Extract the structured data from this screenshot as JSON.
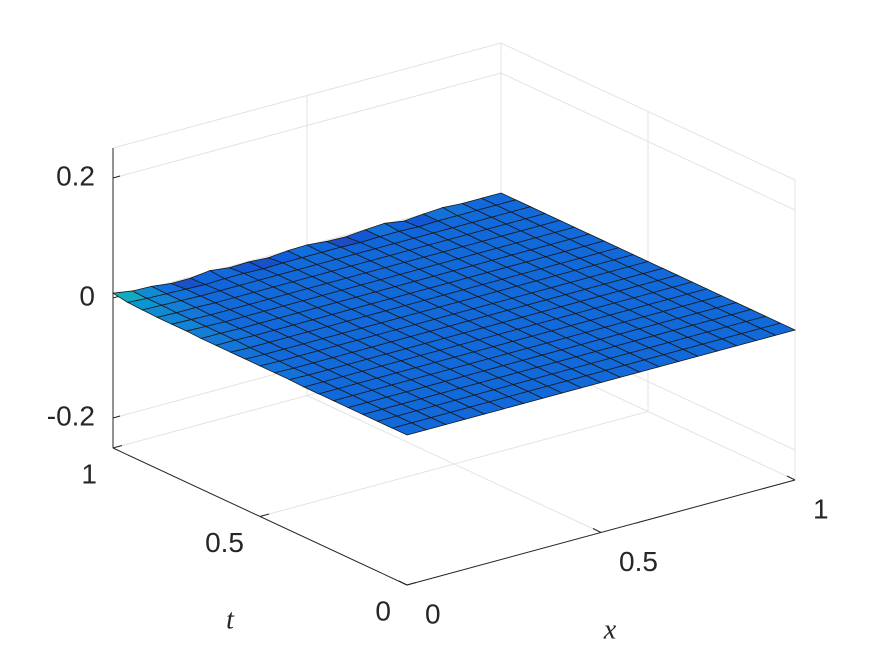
{
  "chart_data": {
    "type": "surface",
    "xlabel": "x",
    "ylabel": "t",
    "x": [
      0,
      0.05,
      0.1,
      0.15,
      0.2,
      0.25,
      0.3,
      0.35,
      0.4,
      0.45,
      0.5,
      0.55,
      0.6,
      0.65,
      0.7,
      0.75,
      0.8,
      0.85,
      0.9,
      0.95,
      1
    ],
    "y": [
      0,
      0.05,
      0.1,
      0.15,
      0.2,
      0.25,
      0.3,
      0.35,
      0.4,
      0.45,
      0.5,
      0.55,
      0.6,
      0.65,
      0.7,
      0.75,
      0.8,
      0.85,
      0.9,
      0.95,
      1
    ],
    "z": [
      [
        0,
        0,
        0,
        0,
        0,
        0,
        0,
        0,
        0,
        0,
        0,
        0,
        0,
        0,
        0,
        0,
        0,
        0,
        0,
        0,
        0
      ],
      [
        0,
        0,
        0,
        0,
        0,
        0,
        0,
        0,
        0,
        0,
        0,
        0,
        0,
        0,
        0,
        0,
        0,
        0,
        0,
        0,
        0
      ],
      [
        0,
        0,
        0,
        0,
        0,
        0,
        0,
        0,
        0,
        0,
        0,
        0,
        0,
        0,
        0,
        0,
        0,
        0,
        0,
        0,
        0
      ],
      [
        0,
        0,
        0,
        0,
        0,
        0,
        0,
        0,
        0,
        0,
        0,
        0,
        0,
        0,
        0,
        0,
        0,
        0,
        0,
        0,
        0
      ],
      [
        0,
        0,
        0,
        0,
        0,
        0,
        0,
        0,
        0,
        0,
        0,
        0,
        0,
        0,
        0,
        0,
        0,
        0,
        0,
        0,
        0
      ],
      [
        0,
        0,
        0,
        0,
        0,
        0,
        0,
        0,
        0,
        0,
        0,
        0,
        0,
        0,
        0,
        0,
        0,
        0,
        0,
        0,
        0
      ],
      [
        0,
        0,
        0,
        0,
        0,
        0,
        0,
        0,
        0,
        0,
        0,
        0,
        0,
        0,
        0,
        0,
        0,
        0,
        0,
        0,
        0
      ],
      [
        0,
        0,
        0,
        0,
        0,
        0,
        0,
        0,
        0,
        0,
        0,
        0,
        0,
        0,
        0,
        0,
        0,
        0,
        0,
        0,
        0
      ],
      [
        0.001,
        0,
        0,
        0,
        0,
        0,
        0,
        0,
        0,
        0,
        0,
        0,
        0,
        0,
        0,
        0,
        0,
        0,
        0,
        0,
        0
      ],
      [
        0.001,
        0,
        0,
        0,
        0,
        0,
        0,
        0,
        0,
        0,
        0,
        0,
        0,
        0,
        0,
        0,
        0,
        0,
        0,
        0,
        0
      ],
      [
        0.001,
        0,
        0,
        0,
        0,
        0,
        0,
        0,
        0,
        0,
        0,
        0,
        0,
        0,
        0,
        0,
        0,
        0,
        0,
        0,
        0
      ],
      [
        0.001,
        0,
        0,
        0,
        0,
        0,
        0,
        0,
        0,
        0,
        0,
        0,
        0,
        0,
        0,
        0,
        0,
        0,
        0,
        0,
        0
      ],
      [
        0.001,
        0,
        0,
        0,
        0,
        0,
        0,
        0,
        0,
        0,
        0,
        0,
        0,
        0,
        0,
        0,
        0,
        0,
        0,
        0,
        0
      ],
      [
        0.001,
        0.001,
        0,
        0,
        0,
        0,
        0,
        0,
        0,
        0,
        0,
        0,
        0,
        0,
        0,
        0,
        0,
        0,
        0,
        0,
        0
      ],
      [
        0.001,
        0.001,
        0,
        0,
        0,
        0,
        0,
        0,
        0,
        0,
        0,
        0,
        0,
        0,
        0,
        0,
        0,
        0,
        0,
        0,
        0
      ],
      [
        0.002,
        0.001,
        0,
        0,
        0,
        0,
        0,
        0,
        0,
        0,
        0,
        0,
        0,
        0,
        0,
        0,
        0,
        0,
        0,
        0,
        0
      ],
      [
        0.002,
        0.001,
        0,
        0,
        0,
        0,
        0,
        0,
        0,
        0,
        0,
        0,
        0,
        0,
        0,
        0,
        0,
        0,
        0,
        0,
        0
      ],
      [
        0.002,
        0.001,
        0.001,
        0,
        0,
        0,
        0,
        0,
        0,
        0,
        0,
        0,
        0,
        0,
        0,
        0,
        0,
        0,
        0,
        0,
        0
      ],
      [
        0.003,
        0.002,
        0.001,
        0,
        0,
        0,
        0,
        0,
        0,
        0,
        0,
        0,
        0,
        0,
        0,
        0,
        0,
        0,
        0,
        0,
        0
      ],
      [
        0.004,
        0.002,
        0.001,
        0,
        -0.001,
        0,
        0,
        -0.001,
        0,
        0,
        0,
        0,
        -0.001,
        0,
        0,
        -0.001,
        0,
        0,
        0,
        0,
        0
      ],
      [
        0.008,
        0.003,
        0.002,
        -0.002,
        -0.002,
        0.002,
        -0.002,
        -0.001,
        -0.003,
        0,
        0.001,
        -0.002,
        -0.003,
        0,
        0.002,
        -0.003,
        0,
        0.002,
        0,
        0,
        0
      ]
    ],
    "xlim": [
      0,
      1
    ],
    "ylim": [
      0,
      1
    ],
    "zlim": [
      -0.25,
      0.25
    ],
    "xticks": [
      0,
      0.5,
      1
    ],
    "yticks": [
      0,
      0.5,
      1
    ],
    "zticks": [
      -0.2,
      0,
      0.2
    ],
    "grid": true,
    "colormap": [
      "#352a87",
      "#0f5cdd",
      "#1481d6",
      "#06a4ca",
      "#2eb7a4",
      "#87bf77"
    ]
  }
}
